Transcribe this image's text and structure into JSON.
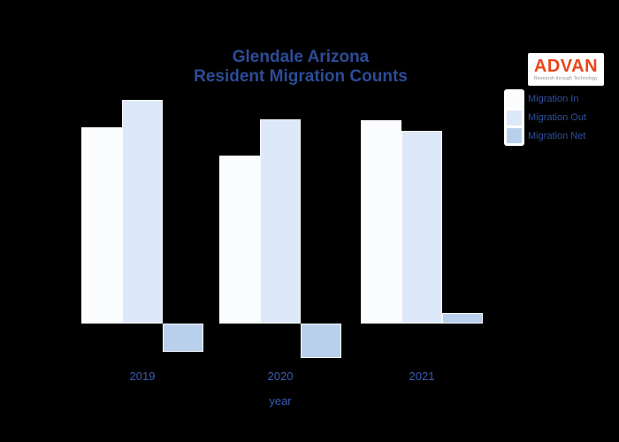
{
  "title": {
    "line1": "Glendale Arizona",
    "line2": "Resident Migration Counts"
  },
  "logo": {
    "name": "ADVAN",
    "tagline": "Research through Technology",
    "brand_color": "#e8461b"
  },
  "legend": {
    "items": [
      {
        "label": "Migration In",
        "color": "#fbfcfe"
      },
      {
        "label": "Migration Out",
        "color": "#dde8f8"
      },
      {
        "label": "Migration Net",
        "color": "#b9d0ec"
      }
    ],
    "text_color": "#2e509f"
  },
  "axis": {
    "x_title": "year",
    "label_color": "#3a5cb3"
  },
  "colors": {
    "background": "#000000",
    "title_text": "#2c4c98",
    "bar_in": "#fbfcfe",
    "bar_out": "#dde8f8",
    "bar_net": "#b9d0ec"
  },
  "chart_data": {
    "type": "bar",
    "title": "Glendale Arizona Resident Migration Counts",
    "categories": [
      "2019",
      "2020",
      "2021"
    ],
    "series": [
      {
        "name": "Migration In",
        "color": "#fbfcfe",
        "values": [
          22200,
          19000,
          23000
        ]
      },
      {
        "name": "Migration Out",
        "color": "#dde8f8",
        "values": [
          25300,
          23100,
          21800
        ]
      },
      {
        "name": "Migration Net",
        "color": "#b9d0ec",
        "values": [
          -3200,
          -3900,
          1200
        ]
      }
    ],
    "xlabel": "year",
    "ylabel": "",
    "ylim": [
      -5000,
      26500
    ],
    "grid": false,
    "y_axis_labels_visible": false,
    "legend_position": "top-right"
  }
}
